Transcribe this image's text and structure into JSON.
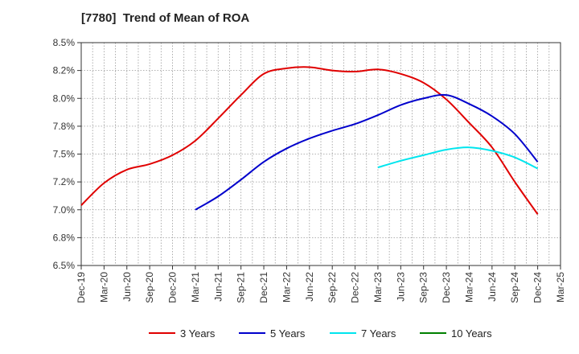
{
  "chart_data": {
    "type": "line",
    "title": "[7780]  Trend of Mean of ROA",
    "xlabel": "",
    "ylabel": "",
    "x_ticks": [
      "Dec-19",
      "Mar-20",
      "Jun-20",
      "Sep-20",
      "Dec-20",
      "Mar-21",
      "Jun-21",
      "Sep-21",
      "Dec-21",
      "Mar-22",
      "Jun-22",
      "Sep-22",
      "Dec-22",
      "Mar-23",
      "Jun-23",
      "Sep-23",
      "Dec-23",
      "Mar-24",
      "Jun-24",
      "Sep-24",
      "Dec-24",
      "Mar-25"
    ],
    "y_ticks": [
      6.5,
      6.75,
      7.0,
      7.25,
      7.5,
      7.75,
      8.0,
      8.25,
      8.5
    ],
    "y_tick_labels": [
      "6.5%",
      "6.8%",
      "7.0%",
      "7.2%",
      "7.5%",
      "7.8%",
      "8.0%",
      "8.2%",
      "8.5%"
    ],
    "ylim": [
      6.5,
      8.5
    ],
    "grid": true,
    "legend_position": "bottom",
    "series": [
      {
        "name": "3 Years",
        "color": "#e00000",
        "x": [
          "Dec-19",
          "Mar-20",
          "Jun-20",
          "Sep-20",
          "Dec-20",
          "Mar-21",
          "Jun-21",
          "Sep-21",
          "Dec-21",
          "Mar-22",
          "Jun-22",
          "Sep-22",
          "Dec-22",
          "Mar-23",
          "Jun-23",
          "Sep-23",
          "Dec-23",
          "Mar-24",
          "Jun-24",
          "Sep-24",
          "Dec-24"
        ],
        "values": [
          7.04,
          7.24,
          7.36,
          7.41,
          7.49,
          7.62,
          7.82,
          8.03,
          8.22,
          8.27,
          8.28,
          8.25,
          8.24,
          8.26,
          8.22,
          8.14,
          7.99,
          7.78,
          7.56,
          7.25,
          6.96
        ]
      },
      {
        "name": "5 Years",
        "color": "#0000cc",
        "x": [
          "Mar-21",
          "Jun-21",
          "Sep-21",
          "Dec-21",
          "Mar-22",
          "Jun-22",
          "Sep-22",
          "Dec-22",
          "Mar-23",
          "Jun-23",
          "Sep-23",
          "Dec-23",
          "Mar-24",
          "Jun-24",
          "Sep-24",
          "Dec-24"
        ],
        "values": [
          7.0,
          7.12,
          7.27,
          7.43,
          7.55,
          7.64,
          7.71,
          7.77,
          7.85,
          7.94,
          8.0,
          8.03,
          7.95,
          7.84,
          7.68,
          7.43
        ]
      },
      {
        "name": "7 Years",
        "color": "#00e5ee",
        "x": [
          "Mar-23",
          "Jun-23",
          "Sep-23",
          "Dec-23",
          "Mar-24",
          "Jun-24",
          "Sep-24",
          "Dec-24"
        ],
        "values": [
          7.38,
          7.44,
          7.49,
          7.54,
          7.56,
          7.53,
          7.47,
          7.37
        ]
      },
      {
        "name": "10 Years",
        "color": "#008000",
        "x": [],
        "values": []
      }
    ]
  }
}
